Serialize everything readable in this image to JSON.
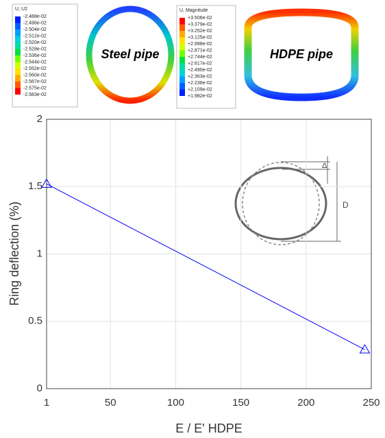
{
  "contours": [
    {
      "title": "U, U2",
      "pipe": "Steel pipe",
      "levels": [
        "-2.488e-02",
        "-2.496e-02",
        "-2.504e-02",
        "-2.512e-02",
        "-2.520e-02",
        "-2.528e-02",
        "-2.536e-02",
        "-2.544e-02",
        "-2.552e-02",
        "-2.560e-02",
        "-2.567e-02",
        "-2.575e-02",
        "-2.583e-02"
      ]
    },
    {
      "title": "U, Magnitude",
      "pipe": "HDPE pipe",
      "levels": [
        "+3.506e-02",
        "+3.379e-02",
        "+3.252e-02",
        "+3.125e-02",
        "+2.998e-02",
        "+2.871e-02",
        "+2.744e-02",
        "+2.617e-02",
        "+2.490e-02",
        "+2.363e-02",
        "+2.236e-02",
        "+2.109e-02",
        "+1.982e-02"
      ]
    }
  ],
  "inset": {
    "labels": [
      "Δ",
      "D"
    ]
  },
  "chart_data": {
    "type": "line",
    "xlabel": "E / E' HDPE",
    "ylabel": "Ring deflection (%)",
    "series": [
      {
        "color": "#0000ff",
        "marker": "triangle",
        "x": [
          1,
          245
        ],
        "values": [
          1.52,
          0.29
        ]
      }
    ],
    "xlim": [
      1,
      250
    ],
    "xticks": [
      1,
      50,
      100,
      150,
      200,
      250
    ],
    "ylim": [
      0,
      2
    ],
    "yticks": [
      0,
      0.5,
      1,
      1.5,
      2
    ],
    "grid": true
  }
}
